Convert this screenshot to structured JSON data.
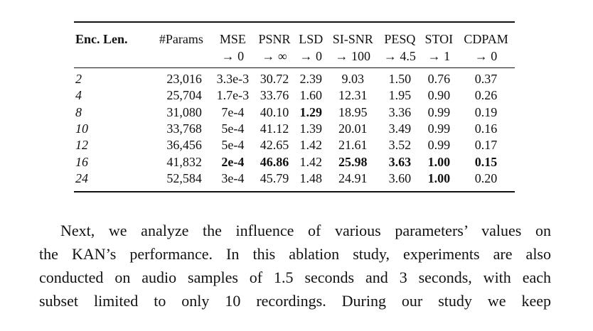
{
  "table": {
    "headers": [
      {
        "top": "Enc. Len.",
        "bottom": ""
      },
      {
        "top": "#Params",
        "bottom": ""
      },
      {
        "top": "MSE",
        "bottom": "→ 0"
      },
      {
        "top": "PSNR",
        "bottom": "→ ∞"
      },
      {
        "top": "LSD",
        "bottom": "→ 0"
      },
      {
        "top": "SI-SNR",
        "bottom": "→ 100"
      },
      {
        "top": "PESQ",
        "bottom": "→ 4.5"
      },
      {
        "top": "STOI",
        "bottom": "→ 1"
      },
      {
        "top": "CDPAM",
        "bottom": "→ 0"
      }
    ],
    "rows": [
      [
        "2",
        "23,016",
        "3.3e-3",
        "30.72",
        "2.39",
        "9.03",
        "1.50",
        "0.76",
        "0.37"
      ],
      [
        "4",
        "25,704",
        "1.7e-3",
        "33.76",
        "1.60",
        "12.31",
        "1.95",
        "0.90",
        "0.26"
      ],
      [
        "8",
        "31,080",
        "7e-4",
        "40.10",
        "1.29",
        "18.95",
        "3.36",
        "0.99",
        "0.19"
      ],
      [
        "10",
        "33,768",
        "5e-4",
        "41.12",
        "1.39",
        "20.01",
        "3.49",
        "0.99",
        "0.16"
      ],
      [
        "12",
        "36,456",
        "5e-4",
        "42.65",
        "1.42",
        "21.61",
        "3.52",
        "0.99",
        "0.17"
      ],
      [
        "16",
        "41,832",
        "2e-4",
        "46.86",
        "1.42",
        "25.98",
        "3.63",
        "1.00",
        "0.15"
      ],
      [
        "24",
        "52,584",
        "3e-4",
        "45.79",
        "1.48",
        "24.91",
        "3.60",
        "1.00",
        "0.20"
      ]
    ],
    "bold_cells": [
      [
        2,
        4
      ],
      [
        5,
        2
      ],
      [
        5,
        3
      ],
      [
        5,
        5
      ],
      [
        5,
        6
      ],
      [
        5,
        7
      ],
      [
        5,
        8
      ],
      [
        6,
        7
      ]
    ]
  },
  "paragraph": {
    "lines": [
      "Next, we analyze the influence of various parameters’ values on",
      "the KAN’s performance. In this ablation study, experiments are also",
      "conducted on audio samples of 1.5 seconds and 3 seconds, with each",
      "subset limited to only 10 recordings. During our study we keep"
    ]
  }
}
